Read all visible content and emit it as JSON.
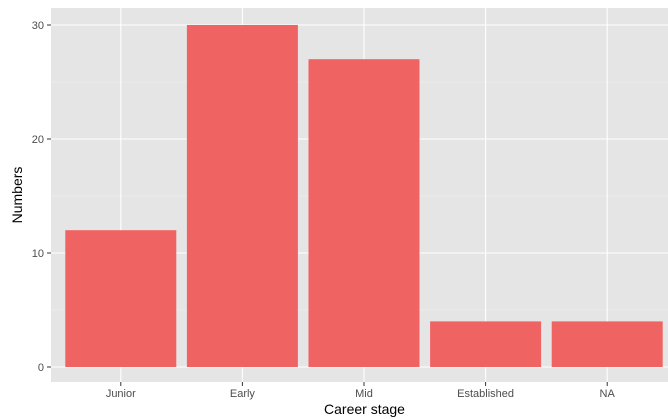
{
  "colors": {
    "panel_background": "#e5e5e5",
    "grid_major": "#ffffff",
    "grid_minor": "#f2f2f2",
    "bar_fill": "#f06363",
    "tick_text": "#4d4d4d",
    "tick_mark": "#333333",
    "axis_title_text": "#000000"
  },
  "chart_data": {
    "type": "bar",
    "title": "",
    "xlabel": "Career stage",
    "ylabel": "Numbers",
    "categories": [
      "Junior",
      "Early",
      "Mid",
      "Established",
      "NA"
    ],
    "values": [
      12,
      30,
      27,
      4,
      4
    ],
    "y_ticks": [
      0,
      10,
      20,
      30
    ],
    "ylim": [
      0,
      31.5
    ],
    "grid": true,
    "legend": "none"
  }
}
